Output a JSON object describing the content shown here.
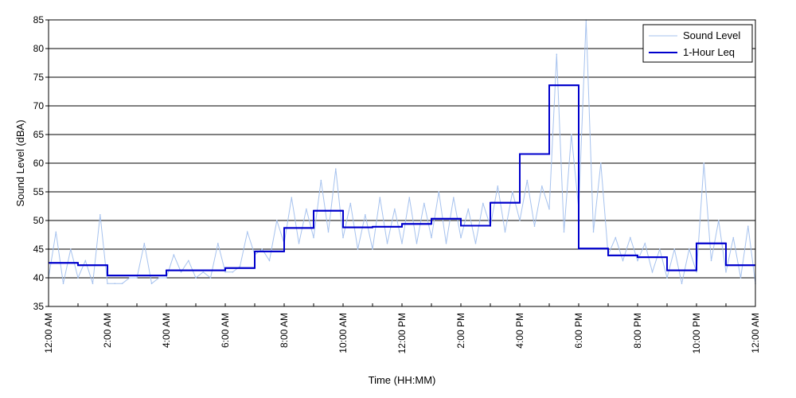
{
  "chart_data": {
    "type": "line",
    "xlabel": "Time (HH:MM)",
    "ylabel": "Sound Level (dBA)",
    "ylim": [
      35,
      85
    ],
    "y_ticks": [
      35,
      40,
      45,
      50,
      55,
      60,
      65,
      70,
      75,
      80,
      85
    ],
    "x_hours_range": [
      0,
      24
    ],
    "x_tick_hours": [
      0,
      2,
      4,
      6,
      8,
      10,
      12,
      14,
      16,
      18,
      20,
      22,
      24
    ],
    "x_tick_labels": [
      "12:00 AM",
      "2:00 AM",
      "4:00 AM",
      "6:00 AM",
      "8:00 AM",
      "10:00 AM",
      "12:00 PM",
      "2:00 PM",
      "4:00 PM",
      "6:00 PM",
      "8:00 PM",
      "10:00 PM",
      "12:00 AM"
    ],
    "grid": "horizontal",
    "legend_position": "top-right",
    "series": [
      {
        "name": "Sound Level",
        "color": "#a6c2ee",
        "style": "thin-line",
        "x_hours": [
          0,
          0.25,
          0.5,
          0.75,
          1,
          1.25,
          1.5,
          1.75,
          2,
          2.25,
          2.5,
          2.75,
          3,
          3.25,
          3.5,
          3.75,
          4,
          4.25,
          4.5,
          4.75,
          5,
          5.25,
          5.5,
          5.75,
          6,
          6.25,
          6.5,
          6.75,
          7,
          7.25,
          7.5,
          7.75,
          8,
          8.25,
          8.5,
          8.75,
          9,
          9.25,
          9.5,
          9.75,
          10,
          10.25,
          10.5,
          10.75,
          11,
          11.25,
          11.5,
          11.75,
          12,
          12.25,
          12.5,
          12.75,
          13,
          13.25,
          13.5,
          13.75,
          14,
          14.25,
          14.5,
          14.75,
          15,
          15.25,
          15.5,
          15.75,
          16,
          16.25,
          16.5,
          16.75,
          17,
          17.25,
          17.5,
          17.75,
          18,
          18.25,
          18.5,
          18.75,
          19,
          19.25,
          19.5,
          19.75,
          20,
          20.25,
          20.5,
          20.75,
          21,
          21.25,
          21.5,
          21.75,
          22,
          22.25,
          22.5,
          22.75,
          23,
          23.25,
          23.5,
          23.75,
          24
        ],
        "values": [
          40,
          48,
          39,
          45,
          40,
          43,
          39,
          51,
          39,
          39,
          39,
          40,
          40,
          46,
          39,
          40,
          40,
          44,
          41,
          43,
          40,
          41,
          40,
          46,
          41,
          41,
          42,
          48,
          44,
          45,
          43,
          50,
          46,
          54,
          46,
          52,
          47,
          57,
          48,
          59,
          47,
          53,
          45,
          51,
          45,
          54,
          46,
          52,
          46,
          54,
          46,
          53,
          47,
          55,
          46,
          54,
          47,
          52,
          46,
          53,
          49,
          56,
          48,
          55,
          50,
          57,
          49,
          56,
          52,
          79,
          48,
          65,
          52,
          85,
          48,
          60,
          44,
          47,
          43,
          47,
          43,
          46,
          41,
          45,
          40,
          45,
          39,
          45,
          41,
          60,
          43,
          50,
          41,
          47,
          40,
          49,
          39
        ]
      },
      {
        "name": "1-Hour Leq",
        "color": "#0000cc",
        "style": "step",
        "values": [
          42.6,
          42.2,
          40.4,
          40.4,
          41.3,
          41.3,
          41.7,
          44.6,
          48.7,
          51.7,
          48.8,
          48.9,
          49.4,
          50.3,
          49.1,
          53.1,
          61.6,
          73.6,
          45.1,
          43.9,
          43.6,
          41.3,
          46.0,
          42.2
        ]
      }
    ]
  }
}
